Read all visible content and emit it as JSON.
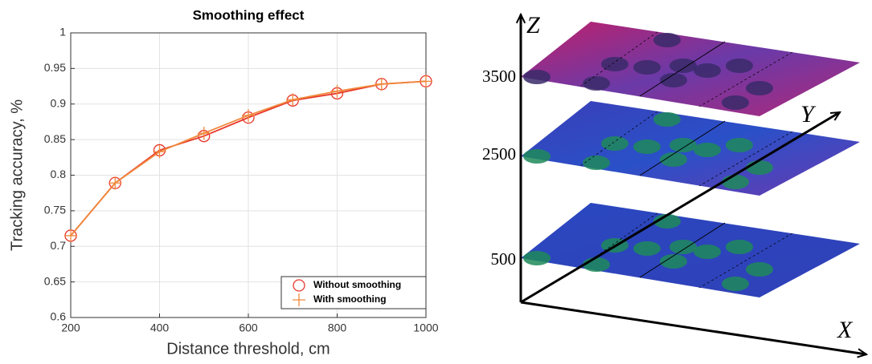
{
  "chart_data": {
    "type": "line",
    "title": "Smoothing effect",
    "x_label": "Distance threshold, cm",
    "y_label": "Tracking accuracy, %",
    "x": [
      200,
      300,
      400,
      500,
      600,
      700,
      800,
      900,
      1000
    ],
    "series": [
      {
        "name": "Without smoothing",
        "color": "#e8372a",
        "marker": "circle",
        "values": [
          0.715,
          0.789,
          0.835,
          0.855,
          0.881,
          0.905,
          0.915,
          0.928,
          0.932
        ]
      },
      {
        "name": "With smoothing",
        "color": "#f0883a",
        "marker": "plus",
        "values": [
          0.715,
          0.789,
          0.833,
          0.859,
          0.884,
          0.906,
          0.918,
          0.928,
          0.932
        ]
      }
    ],
    "xlim": [
      200,
      1000
    ],
    "xticks": [
      200,
      400,
      600,
      800,
      1000
    ],
    "ylim": [
      0.6,
      1
    ],
    "yticks": [
      0.6,
      0.65,
      0.7,
      0.75,
      0.8,
      0.85,
      0.9,
      0.95,
      1
    ],
    "grid": true,
    "legend": "lower right"
  },
  "illustration": {
    "axis_labels": [
      "Z",
      "Y",
      "X"
    ],
    "layer_labels": [
      "3500",
      "2500",
      "500"
    ]
  }
}
